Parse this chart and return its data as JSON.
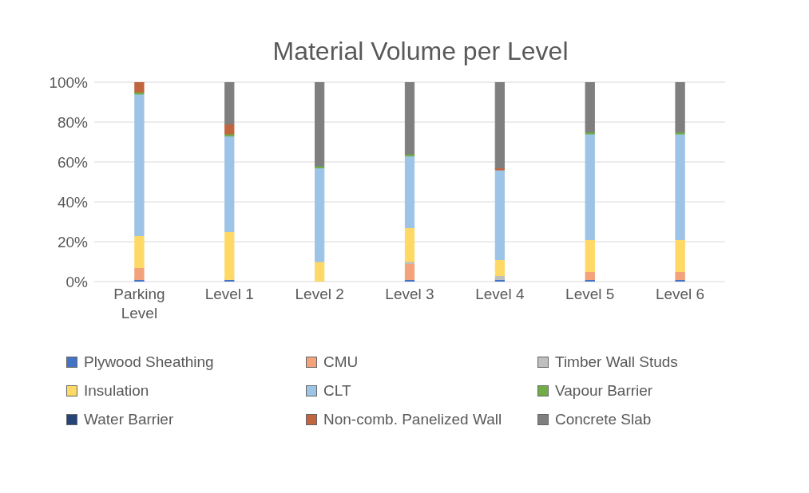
{
  "chart_data": {
    "type": "bar",
    "title": "Material Volume per Level",
    "stacked": true,
    "categories": [
      "Parking Level",
      "Level 1",
      "Level 2",
      "Level 3",
      "Level 4",
      "Level 5",
      "Level 6"
    ],
    "series": [
      {
        "name": "Plywood Sheathing",
        "color": "#4472c4",
        "values": [
          1,
          1,
          0,
          1,
          1,
          1,
          1
        ]
      },
      {
        "name": "CMU",
        "color": "#f4a27c",
        "values": [
          6,
          0,
          0,
          8,
          0,
          4,
          4
        ]
      },
      {
        "name": "Timber Wall Studs",
        "color": "#bfbfbf",
        "values": [
          0,
          0,
          0,
          1,
          2,
          0,
          0
        ]
      },
      {
        "name": "Insulation",
        "color": "#ffd966",
        "values": [
          16,
          24,
          10,
          17,
          8,
          16,
          16
        ]
      },
      {
        "name": "CLT",
        "color": "#9dc3e6",
        "values": [
          71,
          48,
          47,
          36,
          45,
          53,
          53
        ]
      },
      {
        "name": "Vapour Barrier",
        "color": "#70ad47",
        "values": [
          1,
          1,
          1,
          1,
          0,
          1,
          1
        ]
      },
      {
        "name": "Water Barrier",
        "color": "#264478",
        "values": [
          0,
          0,
          0,
          0,
          0,
          0,
          0
        ]
      },
      {
        "name": "Non-comb. Panelized Wall",
        "color": "#c0653e",
        "values": [
          5,
          5,
          0,
          0,
          1,
          0,
          0
        ]
      },
      {
        "name": "Concrete Slab",
        "color": "#7f7f7f",
        "values": [
          0,
          21,
          42,
          36,
          43,
          25,
          25
        ]
      }
    ],
    "ylim": [
      0,
      100
    ],
    "yticks": [
      {
        "value": 0,
        "label": "0%"
      },
      {
        "value": 20,
        "label": "20%"
      },
      {
        "value": 40,
        "label": "40%"
      },
      {
        "value": 60,
        "label": "60%"
      },
      {
        "value": 80,
        "label": "80%"
      },
      {
        "value": 100,
        "label": "100%"
      }
    ],
    "grid": "y",
    "legend": "bottom"
  }
}
